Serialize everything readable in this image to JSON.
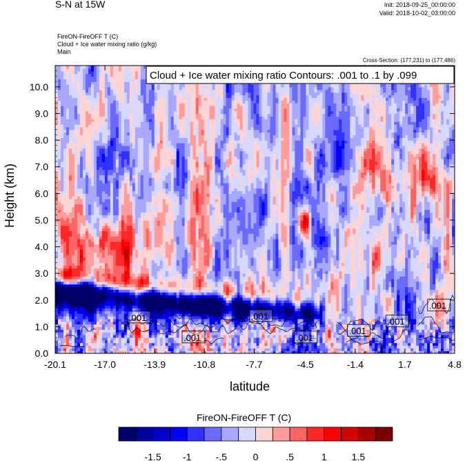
{
  "header": {
    "title": "S-N at 15W",
    "init": "Init: 2018-09-25_00:00:00",
    "valid": "Valid: 2018-10-02_03:00:00",
    "field1": "FireON-FireOFF T   (C)",
    "field2": "Cloud + Ice water mixing ratio   (g/kg)",
    "field3": "Main",
    "cross_section": "Cross-Section: (177,231) to (177,486)"
  },
  "chart_data": {
    "type": "heatmap",
    "title": "S-N at 15W",
    "xlabel": "latitude",
    "ylabel": "Height (km)",
    "xlim": [
      -20.1,
      4.8
    ],
    "ylim": [
      0.0,
      10.8
    ],
    "x_ticks": [
      "-20.1",
      "-17.0",
      "-13.9",
      "-10.8",
      "-7.7",
      "-4.5",
      "-1.4",
      "1.7",
      "4.8"
    ],
    "x_tick_values": [
      -20.1,
      -17.0,
      -13.9,
      -10.8,
      -7.7,
      -4.5,
      -1.4,
      1.7,
      4.8
    ],
    "y_ticks": [
      "0.0",
      "1.0",
      "2.0",
      "3.0",
      "4.0",
      "5.0",
      "6.0",
      "7.0",
      "8.0",
      "9.0",
      "10.0"
    ],
    "y_tick_values": [
      0,
      1,
      2,
      3,
      4,
      5,
      6,
      7,
      8,
      9,
      10
    ],
    "contour_legend": "Cloud + Ice water mixing ratio Contours: .001 to .1 by .099",
    "contour_labels": [
      {
        "text": ".001",
        "lat": -14.9,
        "height": 1.35
      },
      {
        "text": ".001",
        "lat": -11.5,
        "height": 0.6
      },
      {
        "text": ".001",
        "lat": -7.3,
        "height": 1.4
      },
      {
        "text": ".001",
        "lat": -4.5,
        "height": 0.6
      },
      {
        "text": ".001",
        "lat": -1.2,
        "height": 0.85
      },
      {
        "text": ".001",
        "lat": 1.2,
        "height": 1.2
      },
      {
        "text": ".001",
        "lat": 3.8,
        "height": 1.8
      }
    ],
    "colorbar": {
      "title": "FireON-FireOFF T  (C)",
      "labels": [
        "-1.5",
        "-1",
        "-.5",
        "0",
        ".5",
        "1",
        "1.5"
      ],
      "label_values": [
        -1.5,
        -1,
        -0.5,
        0,
        0.5,
        1,
        1.5
      ],
      "colors": [
        "#00006a",
        "#00009d",
        "#0000cb",
        "#0000ff",
        "#3232ff",
        "#6a6aff",
        "#a8a8ff",
        "#d8d8ff",
        "#ffd4d4",
        "#ff9c9c",
        "#ff6464",
        "#ff2828",
        "#ff0000",
        "#d50000",
        "#a80000",
        "#7a0000"
      ]
    },
    "features": [
      {
        "description": "strong cooling layer",
        "lat_range": [
          -20.1,
          -17.0
        ],
        "height_range": [
          1.8,
          2.7
        ],
        "value": -1.8
      },
      {
        "description": "cooling band along cloud top",
        "lat_range": [
          -17.0,
          -4.0
        ],
        "height_range": [
          1.3,
          2.3
        ],
        "value": -1.0
      },
      {
        "description": "warm anomaly aloft",
        "lat_range": [
          -20.1,
          -13.0
        ],
        "height_range": [
          3.0,
          5.0
        ],
        "value": 1.0
      },
      {
        "description": "warm anomaly upper right",
        "lat_range": [
          -0.5,
          4.8
        ],
        "height_range": [
          5.5,
          7.5
        ],
        "value": 0.6
      },
      {
        "description": "warm streak",
        "lat_range": [
          -5.0,
          -4.2
        ],
        "height_range": [
          4.5,
          5.5
        ],
        "value": 1.5
      }
    ]
  }
}
